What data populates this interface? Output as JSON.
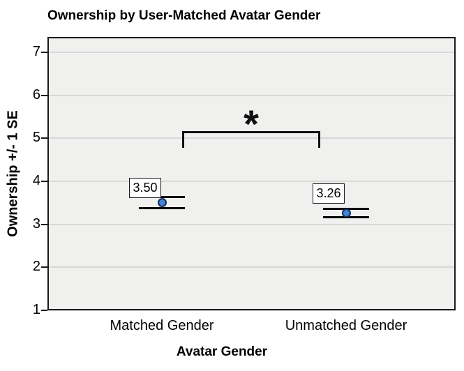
{
  "chart_data": {
    "type": "scatter",
    "title": "Ownership by User-Matched Avatar Gender",
    "xlabel": "Avatar Gender",
    "ylabel": "Ownership +/- 1 SE",
    "categories": [
      "Matched Gender",
      "Unmatched Gender"
    ],
    "values": [
      3.5,
      3.26
    ],
    "value_labels": [
      "3.50",
      "3.26"
    ],
    "standard_errors": [
      0.13,
      0.1
    ],
    "error_bar_style": "caps only, +/- 1 SE",
    "yticks": [
      "1",
      "2",
      "3",
      "4",
      "5",
      "6",
      "7"
    ],
    "ylim": [
      1,
      7.35
    ],
    "grid": true,
    "legend": "none",
    "significance": {
      "symbol": "*",
      "between": [
        "Matched Gender",
        "Unmatched Gender"
      ]
    },
    "colors": {
      "marker_fill": "#4183d7",
      "marker_border": "#152c55",
      "plot_background": "#f0f0ef",
      "gridline": "#d8d8d8",
      "plot_frame": "#1a1a1a",
      "error_bar": "#000000",
      "text": "#000000"
    }
  }
}
